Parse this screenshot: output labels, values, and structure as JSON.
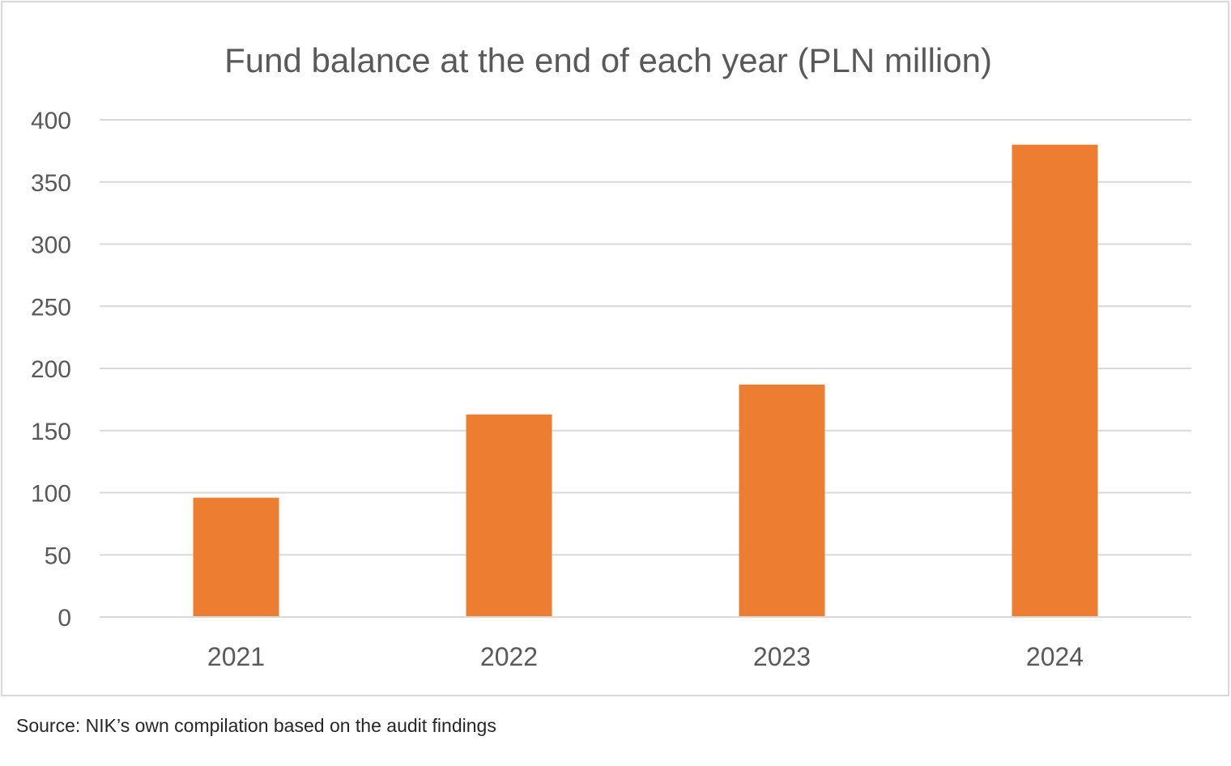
{
  "chart_data": {
    "type": "bar",
    "title": "Fund balance at the end of each year (PLN million)",
    "categories": [
      "2021",
      "2022",
      "2023",
      "2024"
    ],
    "values": [
      96,
      163,
      187,
      380
    ],
    "ylim": [
      0,
      400
    ],
    "yticks": [
      "0",
      "50",
      "100",
      "150",
      "200",
      "250",
      "300",
      "350",
      "400"
    ],
    "grid": true,
    "legend": "none",
    "bar_color": "#ed7d31",
    "gridline_color": "#d9d9d9"
  },
  "source_note": "Source: NIK’s own compilation based on the audit findings"
}
